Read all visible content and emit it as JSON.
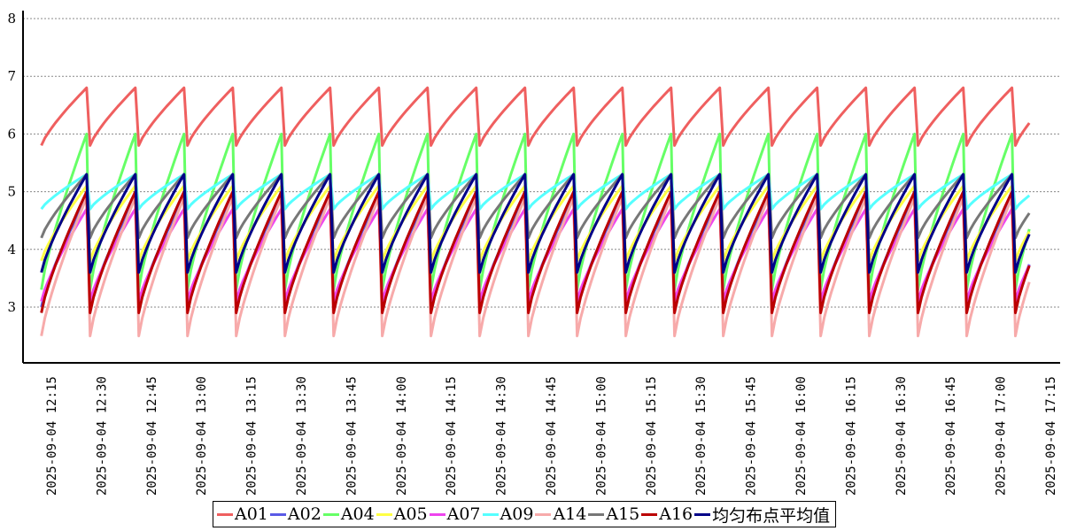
{
  "chart_data": {
    "type": "line",
    "title": "",
    "xlabel": "",
    "ylabel": "",
    "ylim": [
      2,
      8.2
    ],
    "y_ticks": [
      "3",
      "4",
      "5",
      "6",
      "7",
      "8"
    ],
    "grid": "horizontal dotted",
    "legend_position": "bottom-center",
    "x_tick_labels": [
      "2025-09-04 12:15",
      "2025-09-04 12:30",
      "2025-09-04 12:45",
      "2025-09-04 13:00",
      "2025-09-04 13:15",
      "2025-09-04 13:30",
      "2025-09-04 13:45",
      "2025-09-04 14:00",
      "2025-09-04 14:15",
      "2025-09-04 14:30",
      "2025-09-04 14:45",
      "2025-09-04 15:00",
      "2025-09-04 15:15",
      "2025-09-04 15:30",
      "2025-09-04 15:45",
      "2025-09-04 16:00",
      "2025-09-04 16:15",
      "2025-09-04 16:30",
      "2025-09-04 16:45",
      "2025-09-04 17:00",
      "2025-09-04 17:15"
    ],
    "cycle": {
      "start_hour": 12.2,
      "period_hours": 0.24375,
      "samples_per_cycle": 14,
      "samples_total": 285
    },
    "series": [
      {
        "name": "A01",
        "color": "#ef5f5f",
        "min": 5.8,
        "peak": 6.8
      },
      {
        "name": "A02",
        "color": "#5a5ae6",
        "min": 3.0,
        "peak": 4.9
      },
      {
        "name": "A04",
        "color": "#66ff66",
        "min": 3.3,
        "peak": 6.0
      },
      {
        "name": "A05",
        "color": "#ffff44",
        "min": 3.8,
        "peak": 5.1
      },
      {
        "name": "A07",
        "color": "#ee44ee",
        "min": 3.1,
        "peak": 4.7
      },
      {
        "name": "A09",
        "color": "#55ffff",
        "min": 4.7,
        "peak": 5.3
      },
      {
        "name": "A14",
        "color": "#f7aaaa",
        "min": 2.5,
        "peak": 4.9
      },
      {
        "name": "A15",
        "color": "#777777",
        "min": 4.2,
        "peak": 5.3
      },
      {
        "name": "A16",
        "color": "#bb0000",
        "min": 2.9,
        "peak": 5.0
      },
      {
        "name": "均匀布点平均值",
        "color": "#000088",
        "min": 3.6,
        "peak": 5.3
      }
    ]
  }
}
